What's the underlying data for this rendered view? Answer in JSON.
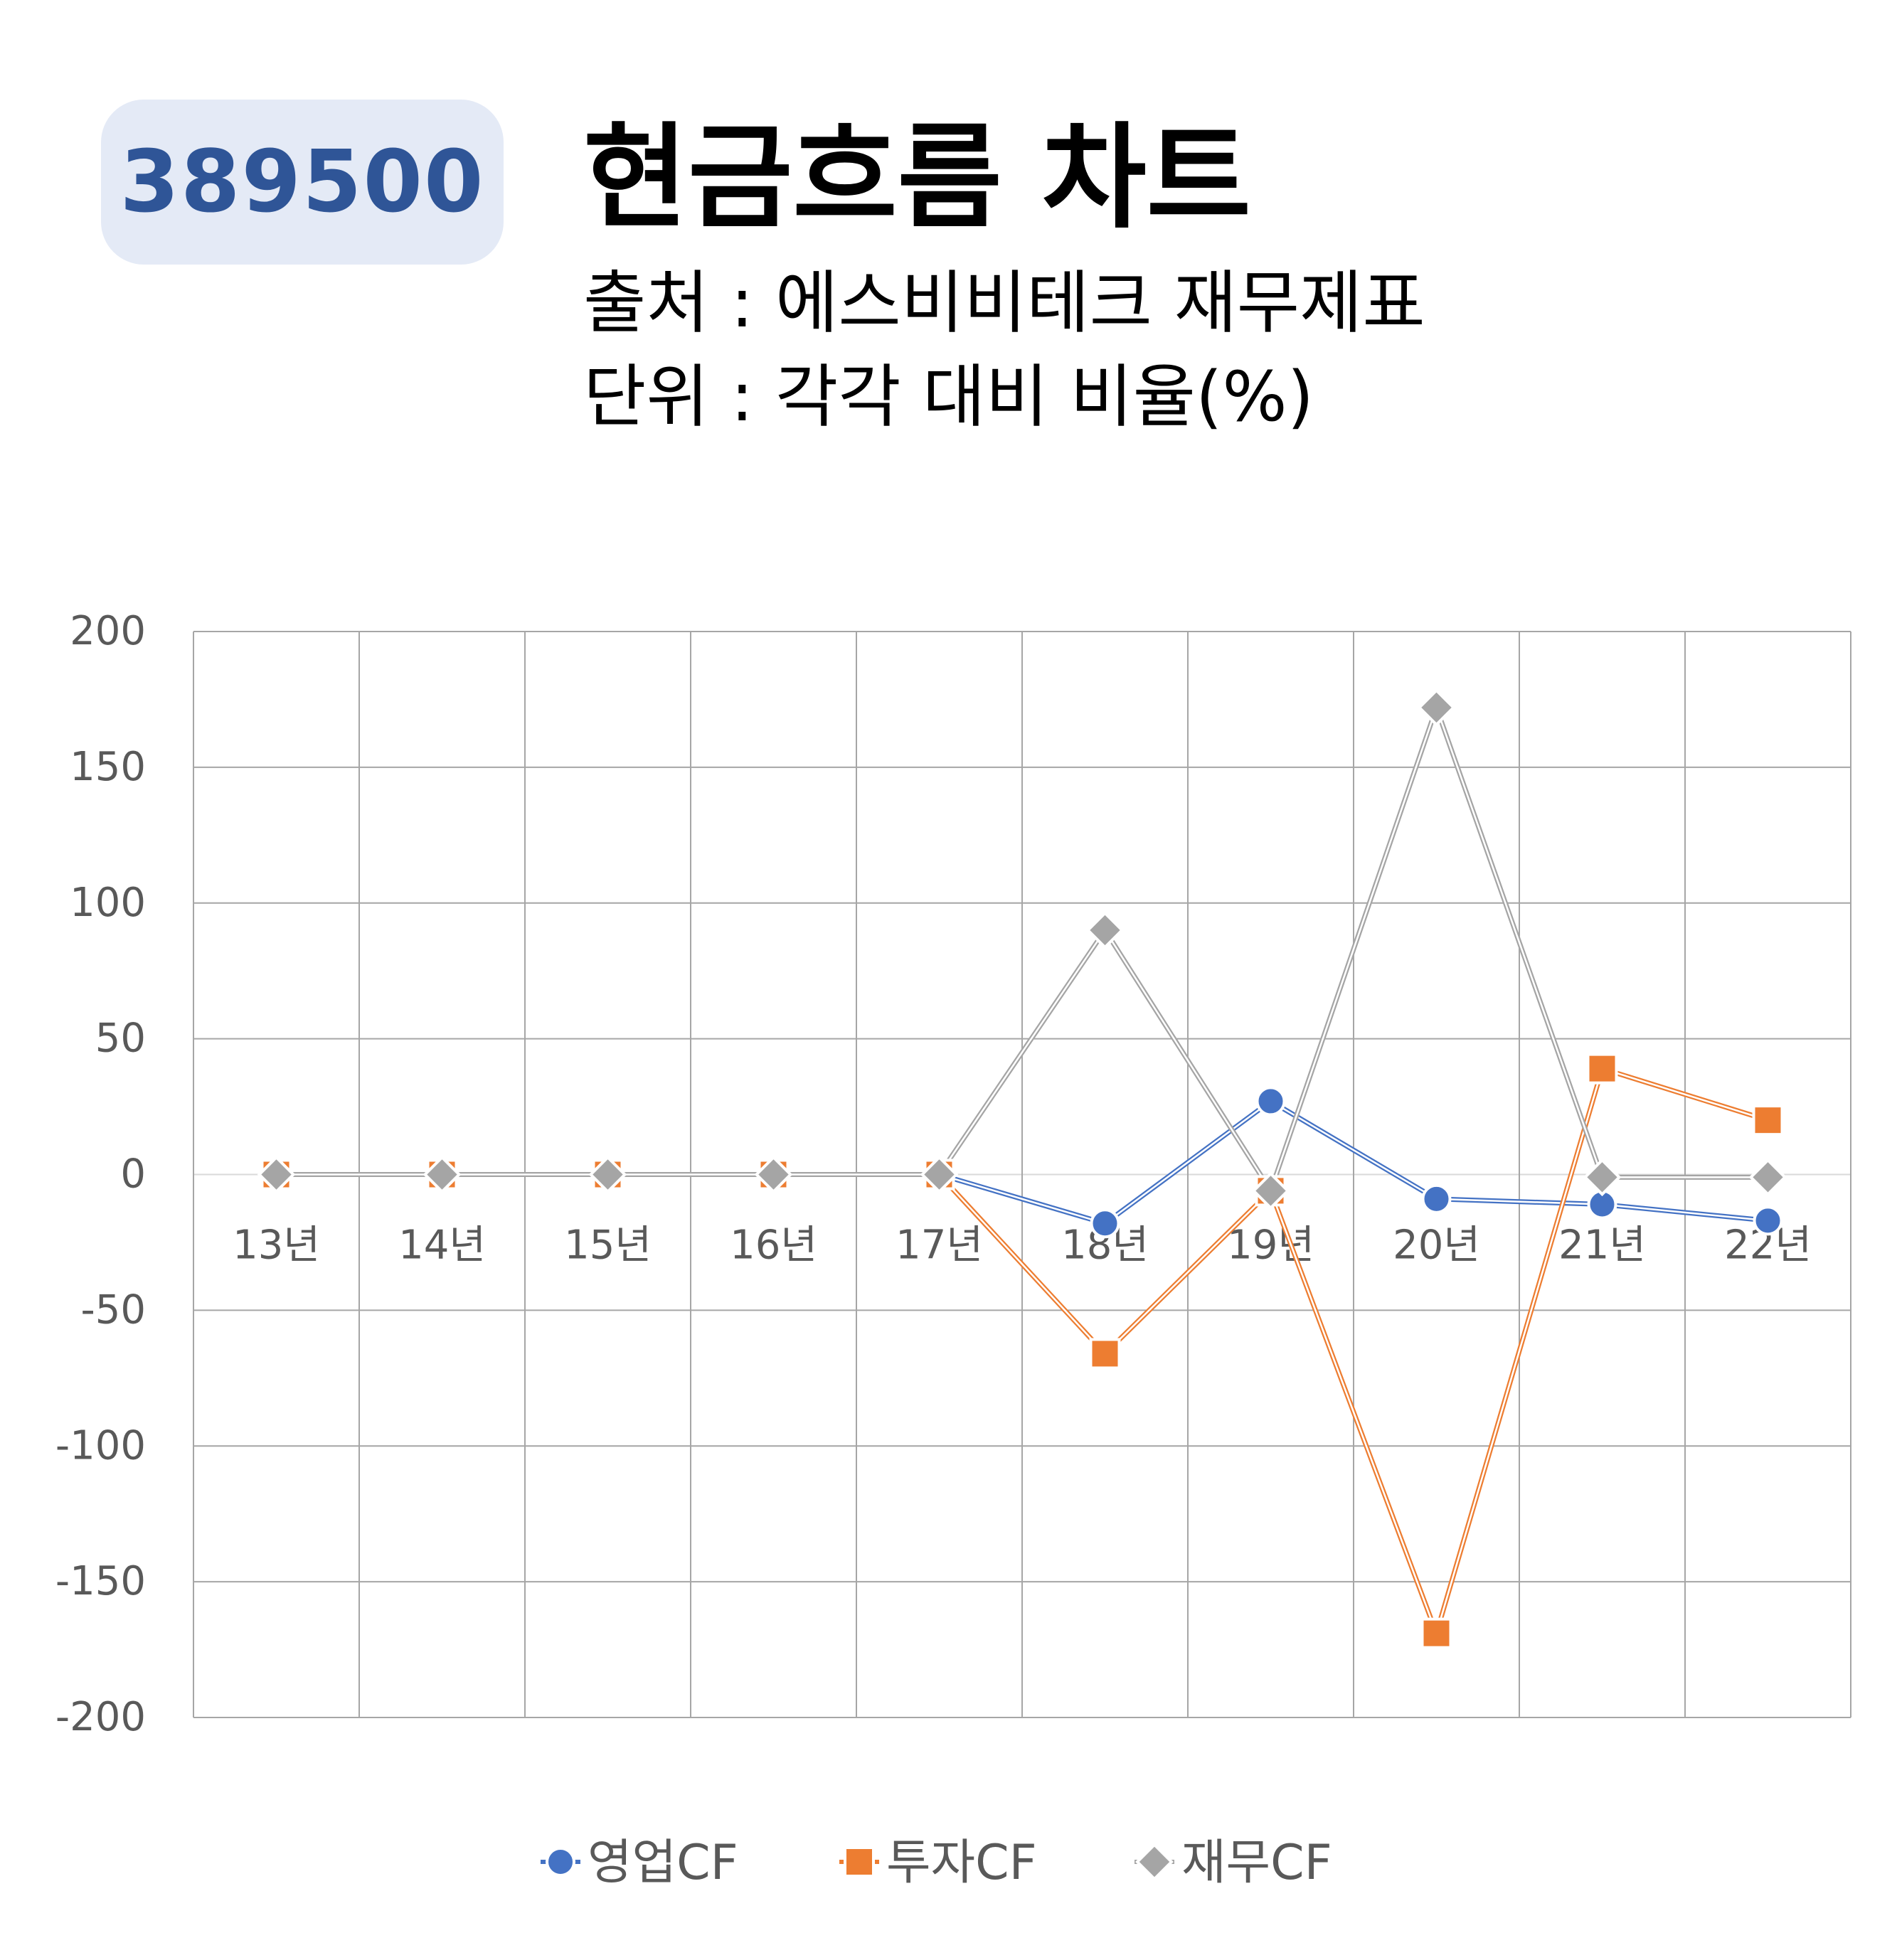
{
  "badge": {
    "code": "389500"
  },
  "header": {
    "title": "현금흐름 차트",
    "source": "출처 : 에스비비테크 재무제표",
    "unit": "단위 : 각각 대비 비율(%)"
  },
  "colors": {
    "badge_bg": "#e4eaf6",
    "badge_text": "#2f5597",
    "grid": "#a6a6a6"
  },
  "chart_data": {
    "type": "line",
    "categories": [
      "13년",
      "14년",
      "15년",
      "16년",
      "17년",
      "18년",
      "19년",
      "20년",
      "21년",
      "22년"
    ],
    "ylim": [
      -200,
      200
    ],
    "yticks": [
      200,
      150,
      100,
      50,
      0,
      -50,
      -100,
      -150,
      -200
    ],
    "grid": true,
    "legend_position": "bottom",
    "series": [
      {
        "name": "영업CF",
        "color": "#4472c4",
        "marker": "circle",
        "values": [
          0,
          0,
          0,
          0,
          0,
          -18,
          27,
          -9,
          -11,
          -17
        ]
      },
      {
        "name": "투자CF",
        "color": "#ed7d31",
        "marker": "square",
        "values": [
          0,
          0,
          0,
          0,
          0,
          -66,
          -6,
          -169,
          39,
          20
        ]
      },
      {
        "name": "재무CF",
        "color": "#a5a5a5",
        "marker": "diamond",
        "values": [
          0,
          0,
          0,
          0,
          0,
          90,
          -6,
          172,
          -1,
          -1
        ]
      }
    ]
  }
}
